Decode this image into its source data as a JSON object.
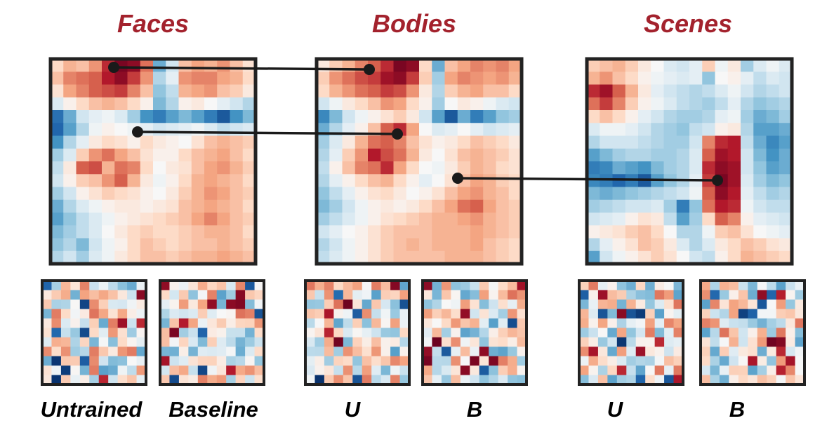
{
  "titles": {
    "faces": "Faces",
    "bodies": "Bodies",
    "scenes": "Scenes"
  },
  "labels": {
    "untrained": "Untrained",
    "baseline": "Baseline",
    "u1": "U",
    "b1": "B",
    "u2": "U",
    "b2": "B"
  },
  "colors": {
    "title": "#a3222d",
    "frame": "#222222",
    "connector": "#1a1a1a",
    "colormap": [
      "#08306b",
      "#2166ac",
      "#4393c3",
      "#92c5de",
      "#d1e5f0",
      "#f7f7f7",
      "#fddbc7",
      "#f4a582",
      "#d6604d",
      "#b2182b",
      "#67001f"
    ]
  },
  "maps": {
    "faces": {
      "grid": 16,
      "values": [
        [
          0.2,
          0.35,
          0.3,
          0.45,
          0.75,
          0.95,
          0.9,
          0.55,
          -0.5,
          -0.2,
          0.3,
          0.4,
          0.35,
          0.45,
          0.3,
          0.15
        ],
        [
          0.3,
          0.5,
          0.55,
          0.6,
          0.8,
          0.9,
          0.7,
          0.45,
          -0.3,
          -0.1,
          0.45,
          0.5,
          0.5,
          0.4,
          0.35,
          0.2
        ],
        [
          0.15,
          0.4,
          0.5,
          0.6,
          0.65,
          0.7,
          0.5,
          0.3,
          -0.4,
          -0.25,
          0.35,
          0.4,
          0.45,
          0.3,
          0.25,
          0.1
        ],
        [
          -0.15,
          0.05,
          0.2,
          0.3,
          0.35,
          0.3,
          0.2,
          0.05,
          -0.45,
          -0.3,
          0.05,
          0.1,
          0.0,
          -0.1,
          -0.2,
          -0.3
        ],
        [
          -0.75,
          -0.5,
          -0.2,
          -0.1,
          -0.05,
          -0.15,
          -0.35,
          -0.6,
          -0.7,
          -0.55,
          -0.45,
          -0.55,
          -0.7,
          -0.85,
          -0.6,
          -0.45
        ],
        [
          -0.8,
          -0.55,
          -0.3,
          -0.05,
          0.05,
          0.0,
          -0.05,
          -0.1,
          -0.2,
          -0.15,
          -0.1,
          -0.05,
          -0.15,
          -0.25,
          -0.2,
          -0.15
        ],
        [
          -0.6,
          -0.3,
          -0.1,
          0.1,
          0.2,
          0.15,
          0.05,
          0.2,
          0.1,
          0.05,
          0.0,
          0.15,
          0.3,
          0.35,
          0.3,
          0.25
        ],
        [
          -0.35,
          -0.15,
          0.25,
          0.45,
          0.55,
          0.4,
          0.3,
          0.15,
          0.05,
          0.05,
          0.2,
          0.3,
          0.35,
          0.4,
          0.3,
          0.2
        ],
        [
          -0.25,
          0.1,
          0.6,
          0.65,
          0.35,
          0.55,
          0.5,
          0.2,
          0.0,
          0.1,
          0.15,
          0.3,
          0.4,
          0.45,
          0.35,
          0.25
        ],
        [
          -0.2,
          0.05,
          0.25,
          0.3,
          0.45,
          0.6,
          0.35,
          0.1,
          -0.05,
          0.05,
          0.2,
          0.35,
          0.4,
          0.35,
          0.3,
          0.2
        ],
        [
          -0.35,
          -0.2,
          0.05,
          0.15,
          0.25,
          0.2,
          0.15,
          0.05,
          0.0,
          0.1,
          0.25,
          0.35,
          0.45,
          0.4,
          0.3,
          0.25
        ],
        [
          -0.5,
          -0.3,
          -0.15,
          -0.05,
          0.05,
          0.1,
          0.1,
          0.05,
          0.1,
          0.15,
          0.3,
          0.35,
          0.4,
          0.35,
          0.3,
          0.2
        ],
        [
          -0.55,
          -0.4,
          -0.25,
          -0.15,
          -0.05,
          0.05,
          0.1,
          0.15,
          0.2,
          0.25,
          0.3,
          0.4,
          0.5,
          0.4,
          0.3,
          0.25
        ],
        [
          -0.45,
          -0.35,
          -0.25,
          -0.15,
          0.0,
          0.1,
          0.2,
          0.25,
          0.2,
          0.2,
          0.25,
          0.3,
          0.35,
          0.35,
          0.3,
          0.2
        ],
        [
          -0.4,
          -0.3,
          -0.45,
          -0.2,
          -0.05,
          0.05,
          0.2,
          0.3,
          0.25,
          0.2,
          0.25,
          0.3,
          0.3,
          0.35,
          0.3,
          0.25
        ],
        [
          -0.3,
          -0.2,
          -0.35,
          -0.15,
          -0.05,
          0.1,
          0.2,
          0.3,
          0.3,
          0.25,
          0.3,
          0.35,
          0.35,
          0.4,
          0.35,
          0.3
        ]
      ]
    },
    "bodies": {
      "grid": 16,
      "values": [
        [
          0.1,
          0.25,
          0.35,
          0.5,
          0.6,
          0.75,
          0.95,
          0.9,
          0.2,
          -0.5,
          0.3,
          0.4,
          0.5,
          0.45,
          0.5,
          0.4
        ],
        [
          0.25,
          0.45,
          0.55,
          0.65,
          0.7,
          0.85,
          0.9,
          0.7,
          0.25,
          -0.35,
          0.4,
          0.5,
          0.45,
          0.4,
          0.45,
          0.35
        ],
        [
          0.2,
          0.35,
          0.45,
          0.55,
          0.6,
          0.7,
          0.65,
          0.45,
          0.1,
          -0.3,
          0.25,
          0.35,
          0.4,
          0.3,
          0.3,
          0.2
        ],
        [
          -0.2,
          -0.05,
          0.1,
          0.2,
          0.3,
          0.45,
          0.4,
          0.2,
          0.05,
          -0.35,
          0.0,
          0.1,
          0.05,
          -0.05,
          -0.15,
          -0.2
        ],
        [
          -0.65,
          -0.45,
          -0.2,
          -0.05,
          0.05,
          0.15,
          0.25,
          0.1,
          -0.2,
          -0.55,
          -0.85,
          -0.5,
          -0.7,
          -0.55,
          -0.4,
          -0.35
        ],
        [
          -0.5,
          -0.3,
          -0.1,
          0.05,
          0.3,
          0.6,
          0.75,
          0.4,
          0.0,
          -0.15,
          -0.1,
          0.0,
          -0.1,
          -0.2,
          -0.15,
          -0.1
        ],
        [
          -0.35,
          -0.15,
          0.1,
          0.35,
          0.55,
          0.6,
          0.5,
          0.3,
          0.15,
          0.05,
          0.1,
          0.2,
          0.3,
          0.25,
          0.2,
          0.1
        ],
        [
          -0.3,
          -0.1,
          0.25,
          0.45,
          0.8,
          0.65,
          0.55,
          0.35,
          0.1,
          0.0,
          0.15,
          0.3,
          0.35,
          0.3,
          0.25,
          0.15
        ],
        [
          -0.25,
          0.05,
          0.3,
          0.5,
          0.55,
          0.75,
          0.4,
          0.2,
          0.0,
          -0.05,
          0.1,
          0.25,
          0.35,
          0.3,
          0.2,
          0.15
        ],
        [
          -0.3,
          -0.1,
          0.05,
          0.2,
          0.3,
          0.35,
          0.2,
          0.05,
          -0.1,
          0.0,
          0.15,
          0.3,
          0.4,
          0.35,
          0.25,
          0.2
        ],
        [
          -0.4,
          -0.25,
          -0.1,
          0.05,
          0.15,
          0.2,
          0.1,
          0.0,
          0.05,
          0.15,
          0.3,
          0.4,
          0.45,
          0.35,
          0.3,
          0.2
        ],
        [
          -0.45,
          -0.35,
          -0.2,
          -0.05,
          0.05,
          0.1,
          0.05,
          0.1,
          0.2,
          0.3,
          0.4,
          0.55,
          0.6,
          0.4,
          0.3,
          0.25
        ],
        [
          -0.35,
          -0.25,
          -0.15,
          -0.05,
          0.05,
          0.15,
          0.2,
          0.25,
          0.3,
          0.35,
          0.35,
          0.4,
          0.45,
          0.35,
          0.3,
          0.25
        ],
        [
          -0.2,
          -0.1,
          0.0,
          0.05,
          0.15,
          0.25,
          0.3,
          0.3,
          0.3,
          0.35,
          0.35,
          0.35,
          0.4,
          0.35,
          0.3,
          0.25
        ],
        [
          -0.3,
          -0.2,
          -0.05,
          0.05,
          0.15,
          0.25,
          0.3,
          0.35,
          0.3,
          0.35,
          0.35,
          0.35,
          0.4,
          0.3,
          0.25,
          0.2
        ],
        [
          -0.25,
          -0.15,
          -0.05,
          0.05,
          0.15,
          0.25,
          0.3,
          0.3,
          0.3,
          0.3,
          0.35,
          0.35,
          0.35,
          0.3,
          0.25,
          0.2
        ]
      ]
    },
    "scenes": {
      "grid": 16,
      "values": [
        [
          0.25,
          0.3,
          0.35,
          0.25,
          0.1,
          0.0,
          -0.15,
          -0.2,
          -0.1,
          0.25,
          -0.05,
          0.1,
          -0.35,
          -0.15,
          -0.05,
          -0.15
        ],
        [
          0.35,
          0.45,
          0.3,
          0.2,
          0.05,
          -0.05,
          -0.1,
          -0.15,
          -0.1,
          -0.4,
          0.0,
          0.05,
          -0.1,
          -0.25,
          -0.15,
          -0.2
        ],
        [
          0.75,
          0.85,
          0.6,
          0.35,
          0.1,
          -0.1,
          -0.2,
          -0.25,
          -0.3,
          -0.25,
          -0.15,
          -0.05,
          -0.2,
          -0.3,
          -0.25,
          -0.2
        ],
        [
          0.55,
          0.7,
          0.5,
          0.25,
          0.05,
          -0.05,
          -0.15,
          -0.25,
          -0.3,
          -0.35,
          -0.25,
          -0.1,
          -0.3,
          -0.4,
          -0.35,
          -0.3
        ],
        [
          0.2,
          0.3,
          0.2,
          0.05,
          -0.1,
          -0.2,
          -0.3,
          -0.35,
          -0.35,
          -0.3,
          -0.1,
          -0.05,
          -0.35,
          -0.5,
          -0.45,
          -0.35
        ],
        [
          -0.15,
          -0.05,
          -0.05,
          -0.1,
          -0.2,
          -0.3,
          -0.35,
          -0.4,
          -0.25,
          -0.2,
          0.05,
          0.1,
          -0.3,
          -0.55,
          -0.55,
          -0.5
        ],
        [
          -0.3,
          -0.2,
          -0.2,
          -0.2,
          -0.25,
          -0.3,
          -0.35,
          -0.35,
          -0.2,
          0.5,
          0.75,
          0.8,
          -0.25,
          -0.5,
          -0.65,
          -0.55
        ],
        [
          -0.55,
          -0.45,
          -0.35,
          -0.3,
          -0.3,
          -0.35,
          -0.35,
          -0.3,
          -0.15,
          0.6,
          0.85,
          0.8,
          -0.2,
          -0.45,
          -0.6,
          -0.5
        ],
        [
          -0.7,
          -0.65,
          -0.5,
          -0.55,
          -0.6,
          -0.45,
          -0.35,
          -0.3,
          -0.15,
          0.75,
          0.9,
          0.85,
          -0.2,
          -0.4,
          -0.55,
          -0.5
        ],
        [
          -0.65,
          -0.7,
          -0.8,
          -0.7,
          -0.85,
          -0.55,
          -0.4,
          -0.3,
          -0.1,
          0.7,
          0.95,
          0.85,
          -0.15,
          -0.35,
          -0.45,
          -0.4
        ],
        [
          -0.45,
          -0.5,
          -0.45,
          -0.4,
          -0.35,
          -0.3,
          -0.25,
          -0.2,
          -0.05,
          0.6,
          0.9,
          0.8,
          -0.1,
          -0.25,
          -0.35,
          -0.3
        ],
        [
          -0.35,
          -0.3,
          -0.25,
          -0.2,
          -0.2,
          -0.15,
          -0.35,
          -0.7,
          -0.4,
          0.55,
          0.8,
          0.75,
          -0.05,
          -0.2,
          -0.25,
          -0.25
        ],
        [
          -0.2,
          -0.15,
          -0.1,
          0.05,
          0.15,
          0.1,
          -0.25,
          -0.55,
          -0.35,
          0.2,
          0.6,
          0.5,
          0.05,
          -0.1,
          -0.15,
          -0.2
        ],
        [
          0.05,
          0.1,
          0.15,
          0.25,
          0.3,
          0.2,
          0.0,
          -0.3,
          -0.3,
          -0.05,
          0.25,
          0.3,
          0.15,
          0.0,
          -0.05,
          -0.1
        ],
        [
          -0.3,
          -0.1,
          0.05,
          0.15,
          0.3,
          0.25,
          0.1,
          -0.15,
          -0.3,
          -0.15,
          0.1,
          0.2,
          0.3,
          0.25,
          0.15,
          0.1
        ],
        [
          -0.55,
          -0.2,
          -0.05,
          0.05,
          0.15,
          0.25,
          0.15,
          0.0,
          -0.2,
          -0.25,
          0.05,
          0.2,
          0.35,
          0.3,
          0.25,
          0.2
        ]
      ]
    },
    "untrained": {
      "grid": 11,
      "seed": 11
    },
    "baseline": {
      "grid": 11,
      "seed": 23
    },
    "bodies_u": {
      "grid": 11,
      "seed": 37
    },
    "bodies_b": {
      "grid": 11,
      "seed": 41
    },
    "scenes_u": {
      "grid": 11,
      "seed": 53
    },
    "scenes_b": {
      "grid": 11,
      "seed": 67
    }
  }
}
